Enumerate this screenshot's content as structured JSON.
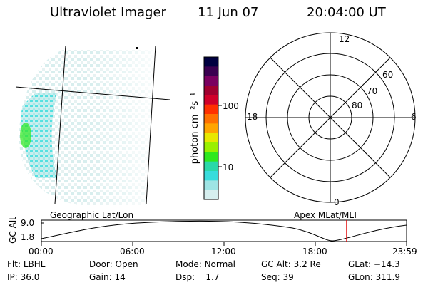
{
  "header": {
    "instrument": "Ultraviolet Imager",
    "date": "11 Jun 07",
    "time": "20:04:00 UT"
  },
  "colorbar": {
    "label": "photon cm⁻²s⁻¹",
    "ticks": [
      "100",
      "10"
    ],
    "colors": [
      "#000040",
      "#3a0050",
      "#7a0060",
      "#a00030",
      "#d0002a",
      "#ff3000",
      "#ff7000",
      "#ffa500",
      "#e8e800",
      "#9af000",
      "#2ee81e",
      "#2ad8a8",
      "#38dcdc",
      "#9ee4e4",
      "#d6eeee"
    ]
  },
  "polar": {
    "mlt_labels": {
      "top": "12",
      "bottom": "0",
      "left": "18",
      "right": "6"
    },
    "lat_labels": [
      "60",
      "70",
      "80"
    ]
  },
  "orbit": {
    "y_label": "GC Alt",
    "y_ticks": [
      "9.0",
      "1.8"
    ],
    "x_ticks": [
      "00:00",
      "06:00",
      "12:00",
      "18:00",
      "23:59"
    ],
    "left_header": "Geographic Lat/Lon",
    "right_header": "Apex MLat/MLT",
    "current_time_fraction": 0.836,
    "marker_color": "#e00000"
  },
  "status": {
    "row1": [
      {
        "label": "Flt:",
        "value": "LBHL"
      },
      {
        "label": "Door:",
        "value": "Open"
      },
      {
        "label": "Mode:",
        "value": "Normal"
      },
      {
        "label": "GC Alt:",
        "value": "3.2 Re"
      },
      {
        "label": "GLat:",
        "value": "−14.3"
      }
    ],
    "row2": [
      {
        "label": "IP:",
        "value": "36.0"
      },
      {
        "label": "Gain:",
        "value": "14"
      },
      {
        "label": "Dsp:",
        "value": "1.7"
      },
      {
        "label": "Seq:",
        "value": "39"
      },
      {
        "label": "GLon:",
        "value": "311.9"
      }
    ]
  }
}
